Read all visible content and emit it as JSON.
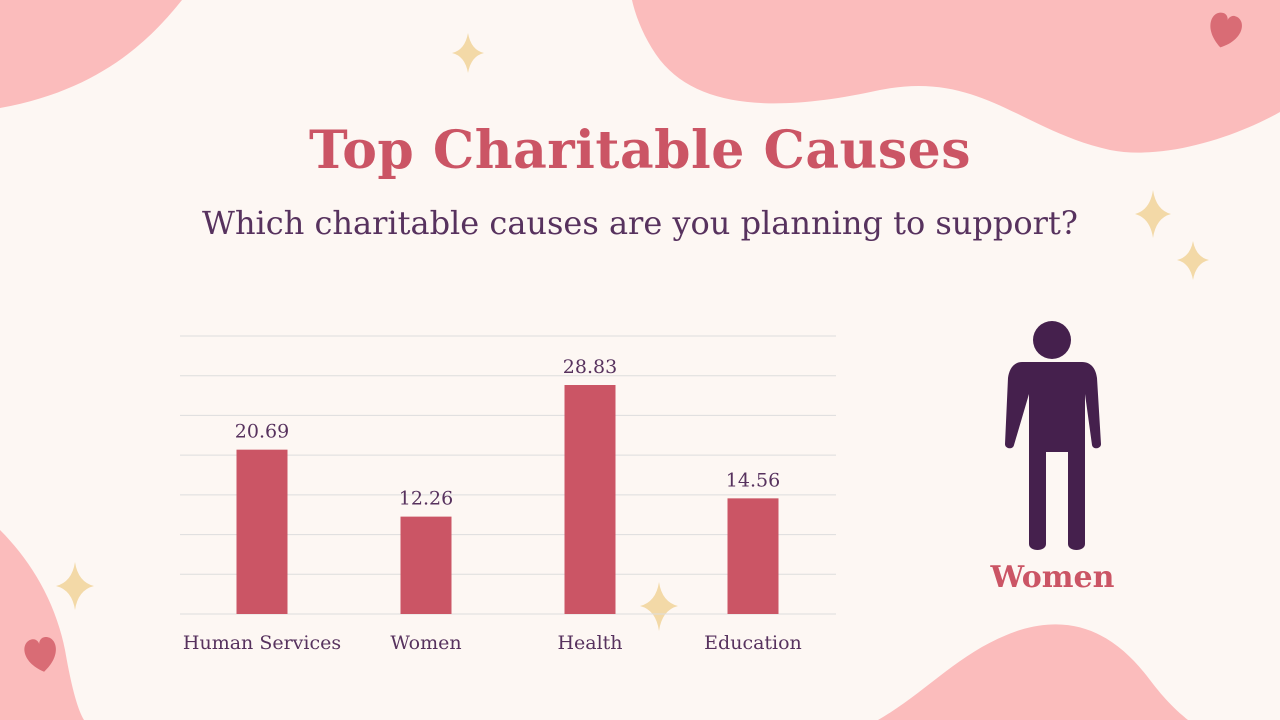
{
  "slide": {
    "title": "Top Charitable Causes",
    "subtitle": "Which charitable causes are you planning to support?"
  },
  "legend": {
    "icon": "person-icon",
    "label": "Women"
  },
  "colors": {
    "background": "#fdf7f3",
    "bar": "#cb5565",
    "text_dark": "#57325e",
    "figure": "#45204d",
    "blob": "#fbbcbc",
    "sparkle": "#f3d9a7",
    "heart": "#d96c75",
    "grid": "#dddddd"
  },
  "chart_data": {
    "type": "bar",
    "categories": [
      "Human Services",
      "Women",
      "Health",
      "Education"
    ],
    "series": [
      {
        "values": [
          20.69,
          12.26,
          28.83,
          14.56
        ]
      }
    ],
    "data_labels": [
      "20.69",
      "12.26",
      "28.83",
      "14.56"
    ],
    "ylim": [
      0,
      35
    ],
    "grid": true,
    "show_y_axis_labels": false
  }
}
